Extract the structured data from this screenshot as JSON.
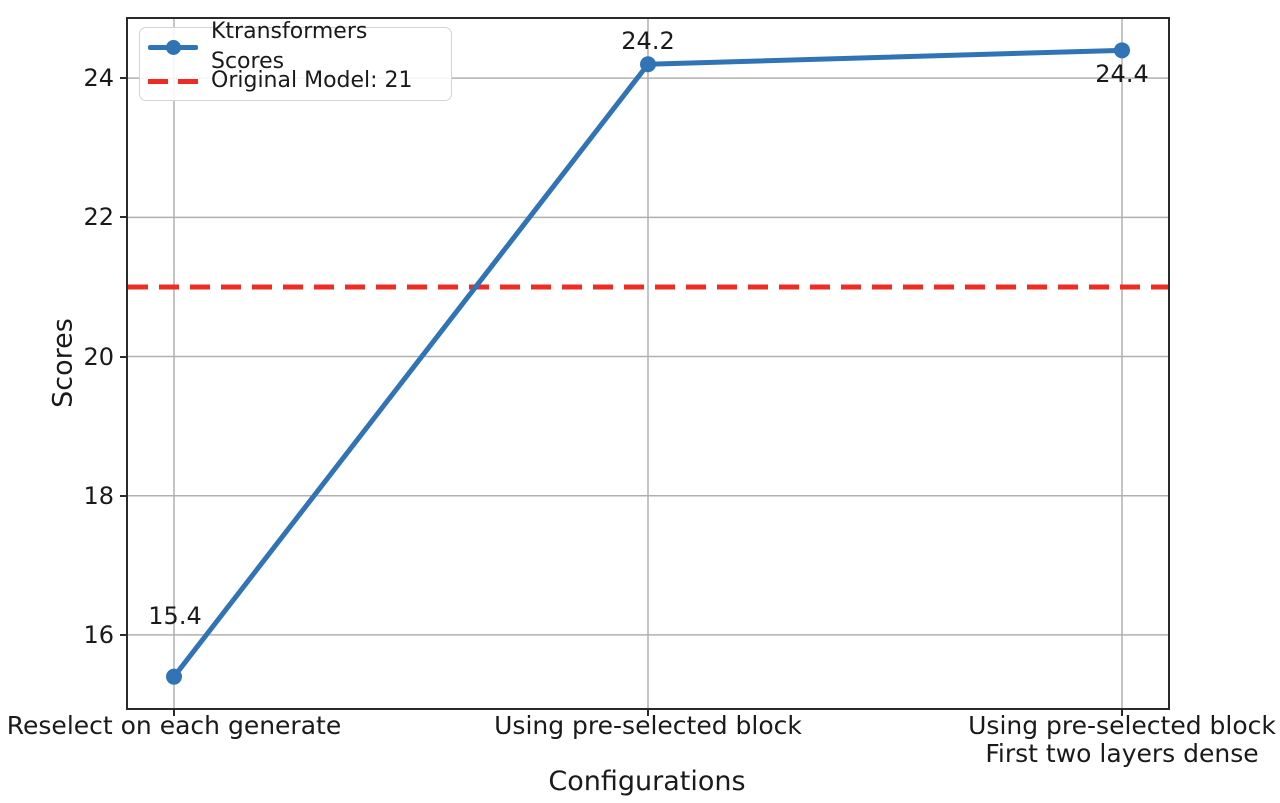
{
  "chart_data": {
    "type": "line",
    "xlabel": "Configurations",
    "ylabel": "Scores",
    "categories": [
      "Reselect on each generate",
      "Using pre-selected block",
      "Using pre-selected block\nFirst two layers dense"
    ],
    "series": [
      {
        "name": "Ktransformers Scores",
        "values": [
          15.4,
          24.2,
          24.4
        ],
        "color": "#3174b5",
        "style": "solid",
        "marker": "circle"
      }
    ],
    "reference_line": {
      "label": "Original Model: 21",
      "value": 21,
      "color": "#ed2c24",
      "style": "dashed"
    },
    "annotations": [
      "15.4",
      "24.2",
      "24.4"
    ],
    "yticks": [
      16,
      18,
      20,
      22,
      24
    ],
    "ylim": [
      14.95,
      24.85
    ],
    "grid": true,
    "grid_color": "#b0b0b0",
    "legend_position": "upper left"
  }
}
